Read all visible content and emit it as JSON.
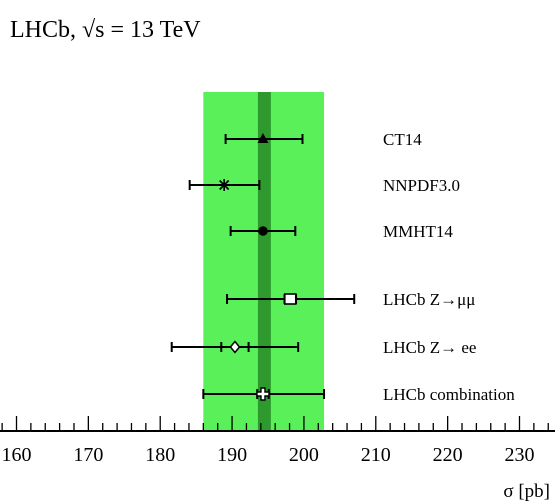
{
  "chart_data": {
    "type": "scatter",
    "title": "LHCb, √s = 13 TeV",
    "xlabel": "σ [pb]",
    "xlim": [
      155,
      234
    ],
    "x_ticks": [
      160,
      170,
      180,
      190,
      200,
      210,
      220,
      230
    ],
    "band": {
      "outer": [
        186,
        202.8
      ],
      "inner": [
        193.6,
        195.4
      ],
      "central": 194.5,
      "outer_color": "#5af05a",
      "inner_color": "#2e9a2e"
    },
    "points": [
      {
        "label": "CT14",
        "value": 194.3,
        "stat_err": null,
        "total_err": [
          189.1,
          199.8
        ],
        "marker": "triangle-filled"
      },
      {
        "label": "NNPDF3.0",
        "value": 188.9,
        "stat_err": null,
        "total_err": [
          184.1,
          193.8
        ],
        "marker": "star"
      },
      {
        "label": "MMHT14",
        "value": 194.3,
        "stat_err": null,
        "total_err": [
          189.8,
          198.8
        ],
        "marker": "circle-filled"
      },
      {
        "label": "LHCb Z→μμ",
        "value": 198.1,
        "stat_err": [
          197.3,
          198.9
        ],
        "total_err": [
          189.3,
          207.0
        ],
        "marker": "square-open"
      },
      {
        "label": "LHCb Z→ ee",
        "value": 190.4,
        "stat_err": [
          188.5,
          192.3
        ],
        "total_err": [
          181.6,
          199.2
        ],
        "marker": "diamond-open"
      },
      {
        "label": "LHCb combination",
        "value": 194.3,
        "stat_err": [
          193.5,
          195.1
        ],
        "total_err": [
          186.0,
          202.8
        ],
        "marker": "cross-open"
      }
    ]
  }
}
